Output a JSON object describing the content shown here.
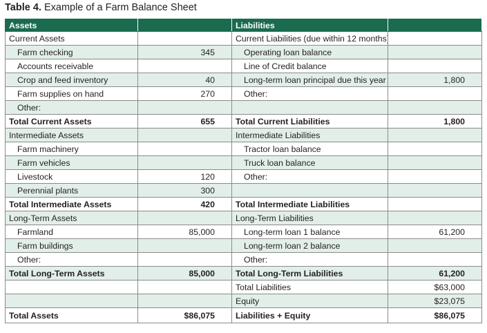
{
  "title": {
    "label": "Table 4.",
    "text": "Example of a Farm Balance Sheet"
  },
  "table": {
    "header": [
      "Assets",
      null,
      "Liabilities",
      null
    ],
    "rows": [
      [
        "Current Assets",
        null,
        "Current Liabilities (due within 12 months)",
        null
      ],
      [
        "Farm checking",
        "345",
        "Operating loan balance",
        null
      ],
      [
        "Accounts receivable",
        null,
        "Line of Credit balance",
        null
      ],
      [
        "Crop and feed inventory",
        "40",
        "Long-term loan principal due this year",
        "1,800"
      ],
      [
        "Farm supplies on hand",
        "270",
        "Other:",
        null
      ],
      [
        "Other:",
        null,
        null,
        null
      ],
      [
        "Total Current Assets",
        "655",
        "Total Current Liabilities",
        "1,800"
      ],
      [
        "Intermediate Assets",
        null,
        "Intermediate Liabilities",
        null
      ],
      [
        "Farm machinery",
        null,
        "Tractor loan balance",
        null
      ],
      [
        "Farm vehicles",
        null,
        "Truck loan balance",
        null
      ],
      [
        "Livestock",
        "120",
        "Other:",
        null
      ],
      [
        "Perennial plants",
        "300",
        null,
        null
      ],
      [
        "Total Intermediate Assets",
        "420",
        "Total Intermediate Liabilities",
        null
      ],
      [
        "Long-Term Assets",
        null,
        "Long-Term Liabilities",
        null
      ],
      [
        "Farmland",
        "85,000",
        "Long-term loan 1 balance",
        "61,200"
      ],
      [
        "Farm buildings",
        null,
        "Long-term loan 2 balance",
        null
      ],
      [
        "Other:",
        null,
        "Other:",
        null
      ],
      [
        "Total Long-Term Assets",
        "85,000",
        "Total Long-Term Liabilities",
        "61,200"
      ],
      [
        null,
        null,
        "Total Liabilities",
        "$63,000"
      ],
      [
        null,
        null,
        "Equity",
        "$23,075"
      ],
      [
        "Total Assets",
        "$86,075",
        "Liabilities + Equity",
        "$86,075"
      ]
    ]
  }
}
